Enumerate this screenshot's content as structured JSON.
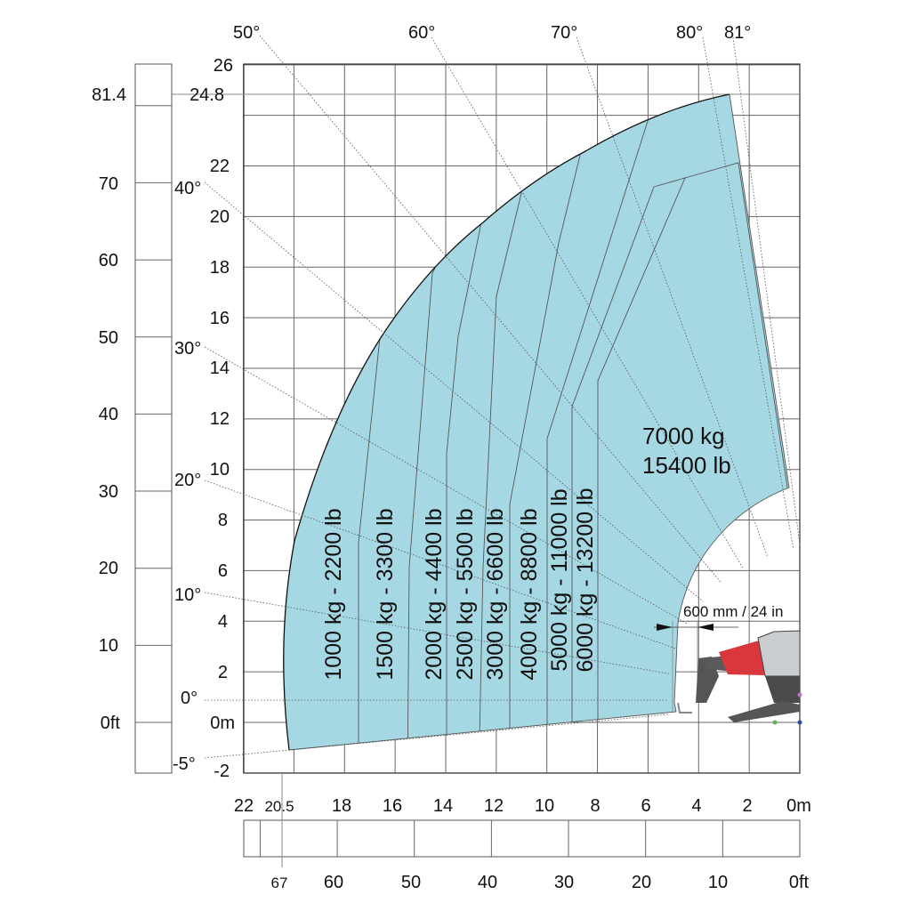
{
  "colors": {
    "zone_fill": "#a6d8e4",
    "boom_red": "#d9363e",
    "machine_grey": "#5a5a5a"
  },
  "y_axis_m": {
    "ticks": [
      "26",
      "24.8",
      "22",
      "20",
      "18",
      "16",
      "14",
      "12",
      "10",
      "8",
      "6",
      "4",
      "2",
      "0m",
      "-2"
    ]
  },
  "y_axis_ft": {
    "ticks": [
      "81.4",
      "70",
      "60",
      "50",
      "40",
      "30",
      "20",
      "10",
      "0ft"
    ]
  },
  "x_axis_m": {
    "ticks": [
      "22",
      "20.5",
      "18",
      "16",
      "14",
      "12",
      "10",
      "8",
      "6",
      "4",
      "2",
      "0m"
    ]
  },
  "x_axis_ft": {
    "ticks": [
      "67",
      "60",
      "50",
      "40",
      "30",
      "20",
      "10",
      "0ft"
    ]
  },
  "angles": [
    "50°",
    "60°",
    "70°",
    "80°",
    "81°",
    "40°",
    "30°",
    "20°",
    "10°",
    "0°",
    "-5°"
  ],
  "zones": [
    {
      "label": "1000 kg - 2200 lb"
    },
    {
      "label": "1500 kg - 3300 lb"
    },
    {
      "label": "2000 kg - 4400 lb"
    },
    {
      "label": "2500 kg - 5500 lb"
    },
    {
      "label": "3000 kg - 6600 lb"
    },
    {
      "label": "4000 kg - 8800 lb"
    },
    {
      "label": "5000 kg - 11000 lb"
    },
    {
      "label": "6000 kg - 13200 lb"
    }
  ],
  "max_zone": {
    "kg": "7000 kg",
    "lb": "15400 lb"
  },
  "clearance": "600 mm / 24 in"
}
